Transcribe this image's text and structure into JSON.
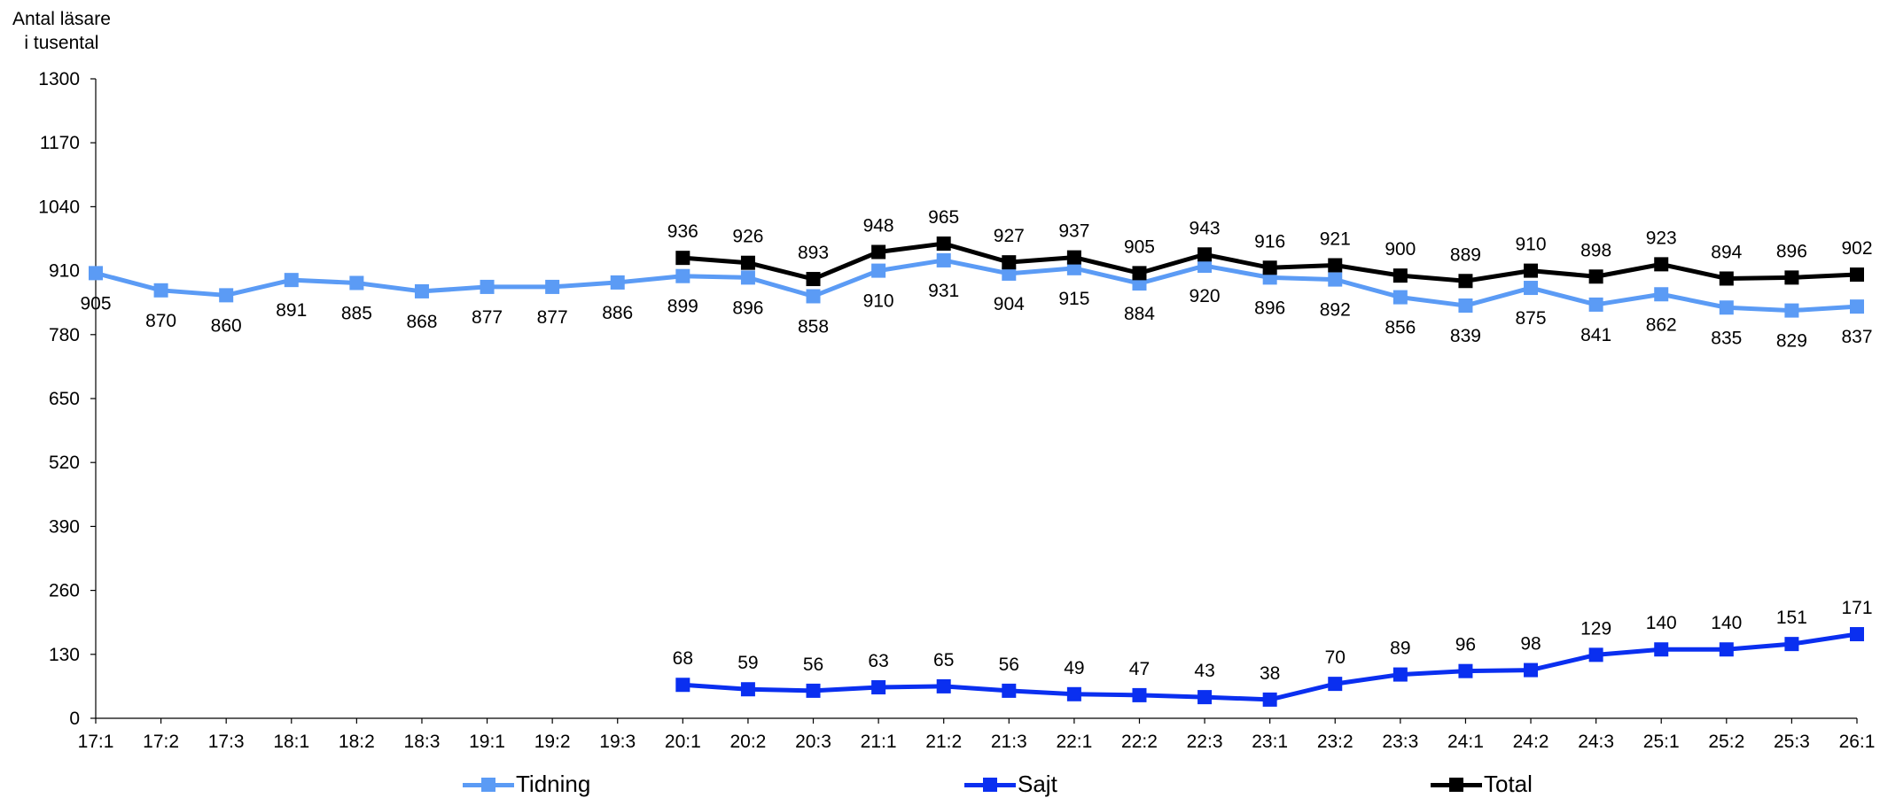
{
  "chart_data": {
    "type": "line",
    "ylabel": [
      "Antal läsare",
      "i tusental"
    ],
    "ylim": [
      0,
      1300
    ],
    "yticks": [
      0,
      130,
      260,
      390,
      520,
      650,
      780,
      910,
      1040,
      1170,
      1300
    ],
    "categories": [
      "17:1",
      "17:2",
      "17:3",
      "18:1",
      "18:2",
      "18:3",
      "19:1",
      "19:2",
      "19:3",
      "20:1",
      "20:2",
      "20:3",
      "21:1",
      "21:2",
      "21:3",
      "22:1",
      "22:2",
      "22:3",
      "23:1",
      "23:2",
      "23:3",
      "24:1",
      "24:2",
      "24:3",
      "25:1",
      "25:2",
      "25:3",
      "26:1"
    ],
    "series": [
      {
        "name": "Tidning",
        "color": "#5b9bf5",
        "label_position": "below",
        "values": [
          905,
          870,
          860,
          891,
          885,
          868,
          877,
          877,
          886,
          899,
          896,
          858,
          910,
          931,
          904,
          915,
          884,
          920,
          896,
          892,
          856,
          839,
          875,
          841,
          862,
          835,
          829,
          837
        ]
      },
      {
        "name": "Sajt",
        "color": "#0a2ff0",
        "label_position": "above",
        "values": [
          null,
          null,
          null,
          null,
          null,
          null,
          null,
          null,
          null,
          68,
          59,
          56,
          63,
          65,
          56,
          49,
          47,
          43,
          38,
          70,
          89,
          96,
          98,
          129,
          140,
          140,
          151,
          171
        ]
      },
      {
        "name": "Total",
        "color": "#000000",
        "label_position": "above",
        "values": [
          null,
          null,
          null,
          null,
          null,
          null,
          null,
          null,
          null,
          936,
          926,
          893,
          948,
          965,
          927,
          937,
          905,
          943,
          916,
          921,
          900,
          889,
          910,
          898,
          923,
          894,
          896,
          902
        ]
      }
    ],
    "legend_placement": "bottom",
    "grid": false
  }
}
